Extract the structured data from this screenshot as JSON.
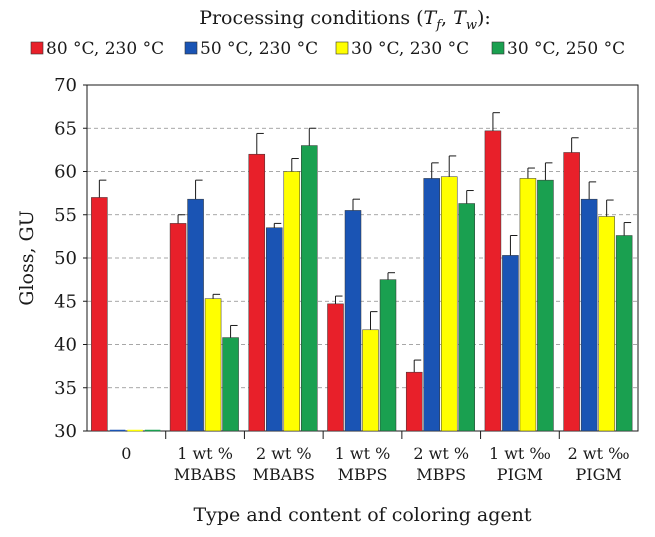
{
  "chart_data": {
    "type": "bar",
    "legend_title": "Processing conditions (T_f, T_w):",
    "legend_position": "top",
    "xlabel": "Type and content of coloring agent",
    "ylabel": "Gloss, GU",
    "ylim": [
      30,
      70
    ],
    "yticks": [
      30,
      35,
      40,
      45,
      50,
      55,
      60,
      65,
      70
    ],
    "grid": true,
    "categories": [
      [
        "0"
      ],
      [
        "1 wt %",
        "MBABS"
      ],
      [
        "2 wt %",
        "MBABS"
      ],
      [
        "1 wt %",
        "MBPS"
      ],
      [
        "2 wt %",
        "MBPS"
      ],
      [
        "1 wt ‰",
        "PIGM"
      ],
      [
        "2 wt ‰",
        "PIGM"
      ]
    ],
    "series": [
      {
        "name": "80 °C,  230 °C",
        "color": "#e8202a",
        "values": [
          57.0,
          54.0,
          62.0,
          44.7,
          36.8,
          64.7,
          62.2
        ],
        "errors": [
          2.0,
          1.0,
          2.4,
          0.9,
          1.4,
          2.1,
          1.7
        ]
      },
      {
        "name": "50 °C,  230 °C",
        "color": "#1a54b4",
        "values": [
          null,
          56.8,
          53.5,
          55.5,
          59.2,
          50.3,
          56.8
        ],
        "errors": [
          0,
          2.2,
          0.5,
          1.3,
          1.8,
          2.3,
          2.0
        ]
      },
      {
        "name": "30 °C,  230 °C",
        "color": "#ffff00",
        "values": [
          null,
          45.3,
          60.0,
          41.7,
          59.4,
          59.2,
          54.8
        ],
        "errors": [
          0,
          0.5,
          1.5,
          2.1,
          2.4,
          1.2,
          1.9
        ]
      },
      {
        "name": "30 °C,  250 °C",
        "color": "#1aa050",
        "values": [
          null,
          40.8,
          63.0,
          47.5,
          56.3,
          59.0,
          52.6
        ],
        "errors": [
          0,
          1.4,
          2.0,
          0.8,
          1.5,
          2.0,
          1.5
        ]
      }
    ]
  }
}
